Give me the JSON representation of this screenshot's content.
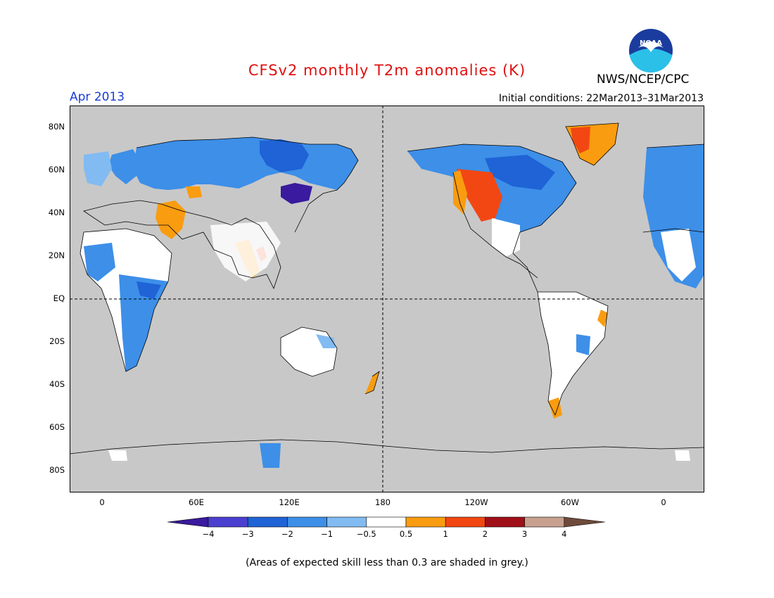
{
  "title": "CFSv2 monthly T2m anomalies (K)",
  "month": "Apr 2013",
  "initial_conditions": "Initial conditions: 22Mar2013–31Mar2013",
  "source": "NWS/NCEP/CPC",
  "logo_text": "NOAA",
  "lat_labels": [
    "80N",
    "60N",
    "40N",
    "20N",
    "EQ",
    "20S",
    "40S",
    "60S",
    "80S"
  ],
  "lon_labels": [
    "0",
    "60E",
    "120E",
    "180",
    "120W",
    "60W",
    "0"
  ],
  "colorbar": {
    "labels": [
      "−4",
      "−3",
      "−2",
      "−1",
      "−0.5",
      "0.5",
      "1",
      "2",
      "3",
      "4"
    ],
    "colors": [
      "#3a1a9e",
      "#4b3fd0",
      "#1f63d6",
      "#3d8fe8",
      "#82bbf2",
      "#ffffff",
      "#f99c10",
      "#f24712",
      "#a01018",
      "#c8a090",
      "#6e4a3a"
    ]
  },
  "note": "(Areas of expected skill less than 0.3 are shaded in grey.)",
  "colors": {
    "title": "#e01010",
    "month": "#1a3cd8",
    "grey_shade": "#c8c8c8"
  }
}
